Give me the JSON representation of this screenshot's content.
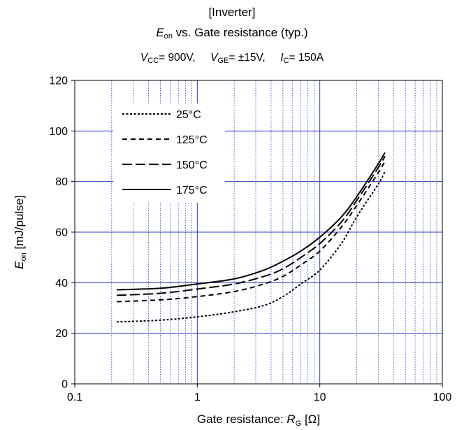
{
  "title_line1": "[Inverter]",
  "title_line2": {
    "symbol": "E",
    "sub": "on",
    "rest": " vs. Gate resistance  (typ.)"
  },
  "title_line3": {
    "vcc_symbol": "V",
    "vcc_sub": "CC",
    "vcc_value": "= 900V,",
    "vge_symbol": "V",
    "vge_sub": "GE",
    "vge_value": "= ±15V,",
    "ic_symbol": "I",
    "ic_sub": "C",
    "ic_value": "=  150A"
  },
  "chart_data": {
    "type": "line",
    "x_scale": "log",
    "xlim": [
      0.1,
      100
    ],
    "ylim": [
      0,
      120
    ],
    "x_ticks": [
      "0.1",
      "1",
      "10",
      "100"
    ],
    "y_ticks": [
      "0",
      "20",
      "40",
      "60",
      "80",
      "100",
      "120"
    ],
    "xlabel": {
      "text": "Gate resistance: ",
      "symbol": "R",
      "sub": "G",
      "unit": " [Ω]"
    },
    "ylabel": {
      "symbol": "E",
      "sub": "on",
      "unit": " [mJ/pulse]"
    },
    "grid": true,
    "legend_position": "top-left",
    "series": [
      {
        "name": "25°C",
        "dash": "dotted",
        "x": [
          0.22,
          0.5,
          1,
          2,
          3.5,
          5,
          7,
          10,
          15,
          20,
          30,
          34
        ],
        "y": [
          24.5,
          25.2,
          26.5,
          28.5,
          31,
          34.5,
          39.5,
          45,
          55.5,
          66,
          79,
          84
        ]
      },
      {
        "name": "125°C",
        "dash": "short-dash",
        "x": [
          0.22,
          0.5,
          1,
          2,
          3.5,
          5,
          7,
          10,
          15,
          20,
          30,
          34
        ],
        "y": [
          32.5,
          33.2,
          34.5,
          36.5,
          39.5,
          42.5,
          47,
          52.5,
          62,
          70.5,
          83.5,
          88
        ]
      },
      {
        "name": "150°C",
        "dash": "long-dash",
        "x": [
          0.22,
          0.5,
          1,
          2,
          3.5,
          5,
          7,
          10,
          15,
          20,
          30,
          34
        ],
        "y": [
          35,
          35.8,
          37.5,
          39.5,
          42.5,
          45.5,
          50,
          55.5,
          64,
          72.5,
          85.5,
          90
        ]
      },
      {
        "name": "175°C",
        "dash": "solid",
        "x": [
          0.22,
          0.5,
          1,
          2,
          3.5,
          5,
          7,
          10,
          15,
          20,
          30,
          34
        ],
        "y": [
          37.2,
          37.8,
          39.5,
          41.5,
          45,
          48.5,
          52.5,
          58,
          66,
          74,
          87,
          91.5
        ]
      }
    ]
  }
}
